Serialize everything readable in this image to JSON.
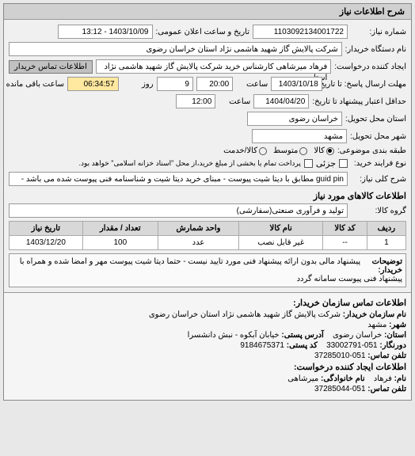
{
  "panel_title": "شرح اطلاعات نیاز",
  "header": {
    "need_number_label": "شماره نیاز:",
    "need_number": "1103092134001722",
    "announce_label": "تاریخ و ساعت اعلان عمومی:",
    "announce_value": "1403/10/09 - 13:12"
  },
  "buyer": {
    "org_label": "نام دستگاه خریدار:",
    "org_value": "شرکت پالایش گاز شهید هاشمی نژاد   استان خراسان رضوی",
    "requester_label": "ایجاد کننده درخواست:",
    "requester_value": "فرهاد میرشاهی کارشناس خرید شرکت پالایش گاز شهید هاشمی نژاد   استا",
    "contact_btn": "اطلاعات تماس خریدار"
  },
  "deadlines": {
    "reply_label": "مهلت ارسال پاسخ: تا تاریخ:",
    "reply_date": "1403/10/18",
    "time_label": "ساعت",
    "reply_time": "20:00",
    "day_count": "9",
    "day_label": "روز",
    "remain_time": "06:34:57",
    "remain_label": "ساعت باقی مانده",
    "validity_label": "حداقل اعتبار پیشنهاد تا تاریخ:",
    "validity_date": "1404/04/20",
    "validity_time": "12:00"
  },
  "location": {
    "province_label": "استان محل تحویل:",
    "province_value": "خراسان رضوی",
    "city_label": "شهر محل تحویل:",
    "city_value": "مشهد"
  },
  "classification": {
    "budget_label": "طبقه بندی موضوعی:",
    "opt_small": "کالا",
    "opt_medium": "متوسط",
    "opt_service": "کالا/خدمت",
    "type_label": "نوع فرایند خرید:",
    "opt_partial": "جزئی",
    "note": "پرداخت تمام یا بخشی از مبلغ خرید،از محل \"اسناد خزانه اسلامی\" خواهد بود."
  },
  "need_desc": {
    "label": "شرح کلی نیاز:",
    "value": "guid pin مطابق با دیتا شیت پیوست - مبنای خرید دیتا شیت و شناسنامه فنی پیوست شده می باشد -"
  },
  "goods": {
    "title": "اطلاعات کالاهای مورد نیاز",
    "group_label": "گروه کالا:",
    "group_value": "تولید و فرآوری صنعتی(سفارشی)"
  },
  "table": {
    "cols": [
      "ردیف",
      "کد کالا",
      "نام کالا",
      "واحد شمارش",
      "تعداد / مقدار",
      "تاریخ نیاز"
    ],
    "rows": [
      [
        "1",
        "--",
        "غیر قابل نصب",
        "عدد",
        "100",
        "1403/12/20"
      ]
    ]
  },
  "buyer_note": {
    "label": "توضیحات خریدار:",
    "text": "پیشنهاد مالی بدون ارائه پیشنهاد فنی مورد تایید نیست - حتما دیتا شیت پیوست مهر و امضا شده و همراه با پیشنهاد فنی پیوست سامانه گردد"
  },
  "contact": {
    "title": "اطلاعات تماس سازمان خریدار:",
    "org_label": "نام سازمان خریدار:",
    "org_value": "شرکت پالایش گاز شهید هاشمی نژاد استان خراسان رضوی",
    "city_label": "شهر:",
    "city_value": "مشهد",
    "province_label": "استان:",
    "province_value": "خراسان رضوی",
    "mailaddr_label": "آدرس پستی:",
    "mailaddr_value": "خیابان آبکوه - نبش دانشسرا",
    "fax_label": "دورنگار:",
    "fax_value": "051-33002791",
    "postal_label": "کد پستی:",
    "postal_value": "9184675371",
    "phone_label": "تلفن تماس:",
    "phone_value": "051-37285010",
    "creator_title": "اطلاعات ایجاد کننده درخواست:",
    "name_label": "نام:",
    "name_value": "فرهاد",
    "lname_label": "نام خانوادگی:",
    "lname_value": "میرشاهی",
    "cphone_label": "تلفن تماس:",
    "cphone_value": "051-37285044"
  }
}
